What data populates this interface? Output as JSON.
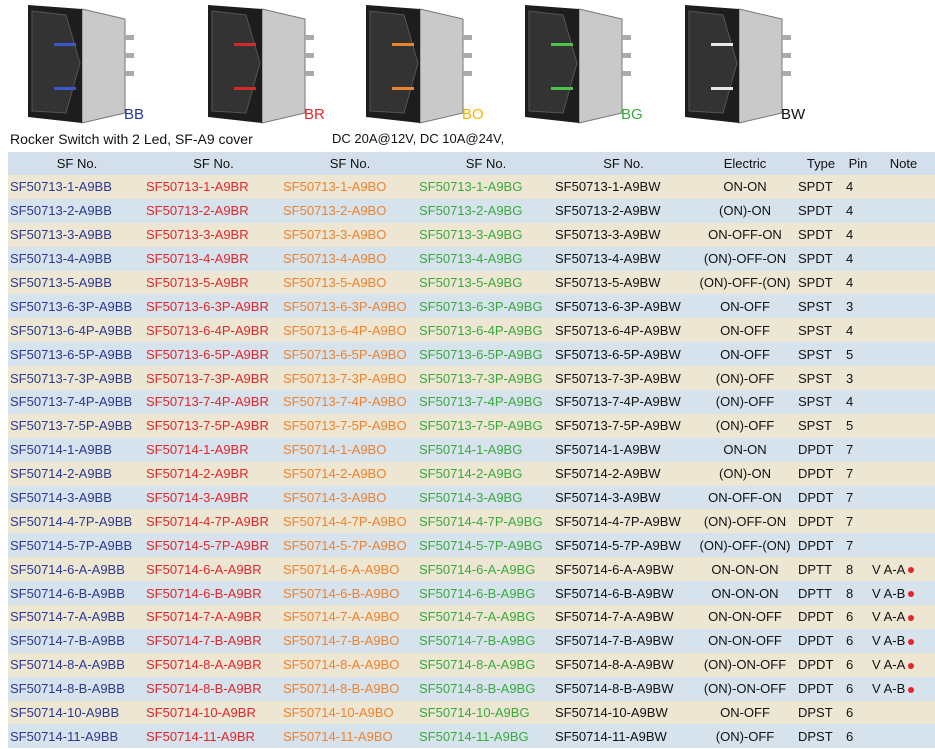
{
  "header": {
    "variants": [
      "BB",
      "BR",
      "BO",
      "BG",
      "BW"
    ],
    "caption": "Rocker Switch with 2 Led, SF-A9 cover",
    "rating": "DC 20A@12V, DC 10A@24V,"
  },
  "table": {
    "columns": [
      "SF No.",
      "SF No.",
      "SF No.",
      "SF No.",
      "SF No.",
      "Electric",
      "Type",
      "Pin",
      "Note"
    ],
    "rows": [
      [
        "SF50713-1-A9BB",
        "SF50713-1-A9BR",
        "SF50713-1-A9BO",
        "SF50713-1-A9BG",
        "SF50713-1-A9BW",
        "ON-ON",
        "SPDT",
        "4"
      ],
      [
        "SF50713-2-A9BB",
        "SF50713-2-A9BR",
        "SF50713-2-A9BO",
        "SF50713-2-A9BG",
        "SF50713-2-A9BW",
        "(ON)-ON",
        "SPDT",
        "4"
      ],
      [
        "SF50713-3-A9BB",
        "SF50713-3-A9BR",
        "SF50713-3-A9BO",
        "SF50713-3-A9BG",
        "SF50713-3-A9BW",
        "ON-OFF-ON",
        "SPDT",
        "4"
      ],
      [
        "SF50713-4-A9BB",
        "SF50713-4-A9BR",
        "SF50713-4-A9BO",
        "SF50713-4-A9BG",
        "SF50713-4-A9BW",
        "(ON)-OFF-ON",
        "SPDT",
        "4"
      ],
      [
        "SF50713-5-A9BB",
        "SF50713-5-A9BR",
        "SF50713-5-A9BO",
        "SF50713-5-A9BG",
        "SF50713-5-A9BW",
        "(ON)-OFF-(ON)",
        "SPDT",
        "4"
      ],
      [
        "SF50713-6-3P-A9BB",
        "SF50713-6-3P-A9BR",
        "SF50713-6-3P-A9BO",
        "SF50713-6-3P-A9BG",
        "SF50713-6-3P-A9BW",
        "ON-OFF",
        "SPST",
        "3"
      ],
      [
        "SF50713-6-4P-A9BB",
        "SF50713-6-4P-A9BR",
        "SF50713-6-4P-A9BO",
        "SF50713-6-4P-A9BG",
        "SF50713-6-4P-A9BW",
        "ON-OFF",
        "SPST",
        "4"
      ],
      [
        "SF50713-6-5P-A9BB",
        "SF50713-6-5P-A9BR",
        "SF50713-6-5P-A9BO",
        "SF50713-6-5P-A9BG",
        "SF50713-6-5P-A9BW",
        "ON-OFF",
        "SPST",
        "5"
      ],
      [
        "SF50713-7-3P-A9BB",
        "SF50713-7-3P-A9BR",
        "SF50713-7-3P-A9BO",
        "SF50713-7-3P-A9BG",
        "SF50713-7-3P-A9BW",
        "(ON)-OFF",
        "SPST",
        "3"
      ],
      [
        "SF50713-7-4P-A9BB",
        "SF50713-7-4P-A9BR",
        "SF50713-7-4P-A9BO",
        "SF50713-7-4P-A9BG",
        "SF50713-7-4P-A9BW",
        "(ON)-OFF",
        "SPST",
        "4"
      ],
      [
        "SF50713-7-5P-A9BB",
        "SF50713-7-5P-A9BR",
        "SF50713-7-5P-A9BO",
        "SF50713-7-5P-A9BG",
        "SF50713-7-5P-A9BW",
        "(ON)-OFF",
        "SPST",
        "5"
      ],
      [
        "SF50714-1-A9BB",
        "SF50714-1-A9BR",
        "SF50714-1-A9BO",
        "SF50714-1-A9BG",
        "SF50714-1-A9BW",
        "ON-ON",
        "DPDT",
        "7"
      ],
      [
        "SF50714-2-A9BB",
        "SF50714-2-A9BR",
        "SF50714-2-A9BO",
        "SF50714-2-A9BG",
        "SF50714-2-A9BW",
        "(ON)-ON",
        "DPDT",
        "7"
      ],
      [
        "SF50714-3-A9BB",
        "SF50714-3-A9BR",
        "SF50714-3-A9BO",
        "SF50714-3-A9BG",
        "SF50714-3-A9BW",
        "ON-OFF-ON",
        "DPDT",
        "7"
      ],
      [
        "SF50714-4-7P-A9BB",
        "SF50714-4-7P-A9BR",
        "SF50714-4-7P-A9BO",
        "SF50714-4-7P-A9BG",
        "SF50714-4-7P-A9BW",
        "(ON)-OFF-ON",
        "DPDT",
        "7"
      ],
      [
        "SF50714-5-7P-A9BB",
        "SF50714-5-7P-A9BR",
        "SF50714-5-7P-A9BO",
        "SF50714-5-7P-A9BG",
        "SF50714-5-7P-A9BW",
        "(ON)-OFF-(ON)",
        "DPDT",
        "7"
      ],
      [
        "SF50714-6-A-A9BB",
        "SF50714-6-A-A9BR",
        "SF50714-6-A-A9BO",
        "SF50714-6-A-A9BG",
        "SF50714-6-A-A9BW",
        "ON-ON-ON",
        "DPTT",
        "8",
        "V A-A"
      ],
      [
        "SF50714-6-B-A9BB",
        "SF50714-6-B-A9BR",
        "SF50714-6-B-A9BO",
        "SF50714-6-B-A9BG",
        "SF50714-6-B-A9BW",
        "ON-ON-ON",
        "DPTT",
        "8",
        "V A-B"
      ],
      [
        "SF50714-7-A-A9BB",
        "SF50714-7-A-A9BR",
        "SF50714-7-A-A9BO",
        "SF50714-7-A-A9BG",
        "SF50714-7-A-A9BW",
        "ON-ON-OFF",
        "DPDT",
        "6",
        "V A-A"
      ],
      [
        "SF50714-7-B-A9BB",
        "SF50714-7-B-A9BR",
        "SF50714-7-B-A9BO",
        "SF50714-7-B-A9BG",
        "SF50714-7-B-A9BW",
        "ON-ON-OFF",
        "DPDT",
        "6",
        "V A-B"
      ],
      [
        "SF50714-8-A-A9BB",
        "SF50714-8-A-A9BR",
        "SF50714-8-A-A9BO",
        "SF50714-8-A-A9BG",
        "SF50714-8-A-A9BW",
        "(ON)-ON-OFF",
        "DPDT",
        "6",
        "V A-A"
      ],
      [
        "SF50714-8-B-A9BB",
        "SF50714-8-B-A9BR",
        "SF50714-8-B-A9BO",
        "SF50714-8-B-A9BG",
        "SF50714-8-B-A9BW",
        "(ON)-ON-OFF",
        "DPDT",
        "6",
        "V A-B"
      ],
      [
        "SF50714-10-A9BB",
        "SF50714-10-A9BR",
        "SF50714-10-A9BO",
        "SF50714-10-A9BG",
        "SF50714-10-A9BW",
        "ON-OFF",
        "DPST",
        "6"
      ],
      [
        "SF50714-11-A9BB",
        "SF50714-11-A9BR",
        "SF50714-11-A9BO",
        "SF50714-11-A9BG",
        "SF50714-11-A9BW",
        "(ON)-OFF",
        "DPST",
        "6"
      ]
    ]
  }
}
